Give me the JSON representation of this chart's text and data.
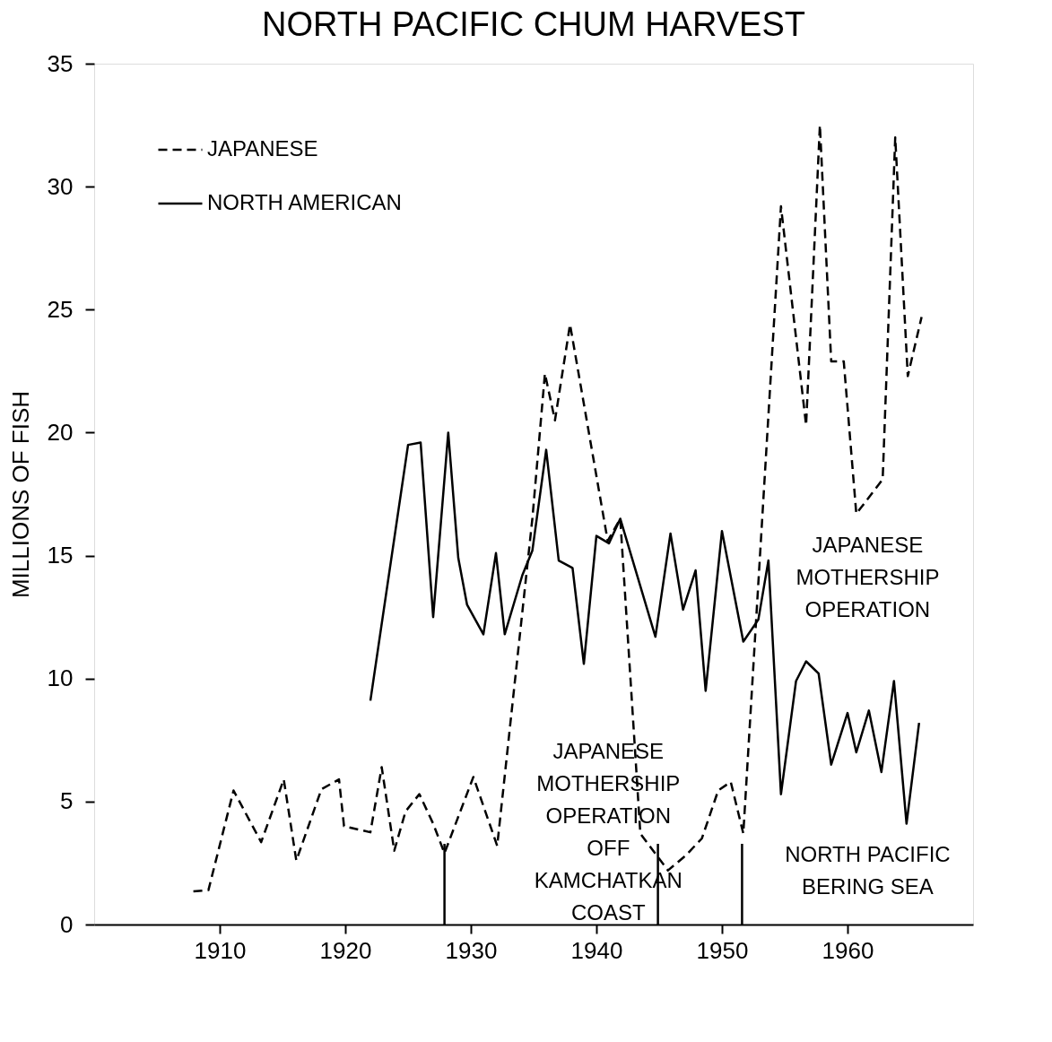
{
  "chart_data": {
    "type": "line",
    "title": "NORTH PACIFIC CHUM HARVEST",
    "ylabel": "MILLIONS OF FISH",
    "xlim": [
      1900,
      1970
    ],
    "xticks": [
      1910,
      1920,
      1930,
      1940,
      1950,
      1960
    ],
    "ylim": [
      0,
      35
    ],
    "yticks": [
      0,
      5,
      10,
      15,
      20,
      25,
      30,
      35
    ],
    "grid": false,
    "legend": "top left",
    "marker": "none",
    "series": [
      {
        "name": "JAPANESE",
        "color": "#000000",
        "line_style": "dashed",
        "x": [
          1907.9,
          1909.1,
          1911.1,
          1913.3,
          1915.1,
          1916.1,
          1918.1,
          1919.5,
          1919.9,
          1922.0,
          1922.9,
          1923.9,
          1924.8,
          1925.9,
          1927.0,
          1927.9,
          1930.2,
          1932.1,
          1934.9,
          1935.9,
          1936.7,
          1937.9,
          1940.9,
          1941.9,
          1943.5,
          1945.7,
          1947.1,
          1948.4,
          1949.7,
          1950.7,
          1951.7,
          1954.7,
          1956.7,
          1957.8,
          1958.7,
          1959.7,
          1960.7,
          1962.8,
          1963.8,
          1964.8,
          1965.9
        ],
        "values": [
          1.35,
          1.4,
          5.45,
          3.35,
          5.9,
          2.6,
          5.5,
          5.9,
          4.0,
          3.75,
          6.4,
          3.0,
          4.6,
          5.3,
          4.1,
          2.9,
          6.0,
          3.2,
          16.5,
          22.4,
          20.5,
          24.4,
          15.6,
          16.5,
          3.7,
          2.2,
          2.8,
          3.5,
          5.45,
          5.8,
          3.7,
          29.2,
          20.3,
          32.5,
          22.9,
          22.9,
          16.7,
          18.1,
          32.0,
          22.3,
          24.7
        ]
      },
      {
        "name": "NORTH AMERICAN",
        "color": "#000000",
        "line_style": "solid",
        "x": [
          1922.0,
          1925.0,
          1926.0,
          1927.0,
          1928.2,
          1929.0,
          1929.7,
          1931.0,
          1932.0,
          1932.7,
          1934.1,
          1934.9,
          1936.0,
          1937.0,
          1938.1,
          1939.0,
          1940.0,
          1941.0,
          1941.9,
          1944.7,
          1945.9,
          1946.9,
          1947.9,
          1948.7,
          1950.0,
          1951.7,
          1952.9,
          1953.7,
          1954.7,
          1955.9,
          1956.7,
          1957.7,
          1958.7,
          1960.0,
          1960.7,
          1961.7,
          1962.7,
          1963.7,
          1964.7,
          1965.7
        ],
        "values": [
          9.1,
          19.5,
          19.6,
          12.5,
          20.0,
          14.9,
          13.0,
          11.8,
          15.1,
          11.8,
          14.2,
          15.2,
          19.3,
          14.8,
          14.5,
          10.6,
          15.8,
          15.5,
          16.5,
          11.7,
          15.9,
          12.8,
          14.4,
          9.5,
          16.0,
          11.5,
          12.4,
          14.8,
          5.3,
          9.9,
          10.7,
          10.2,
          6.5,
          8.6,
          7.0,
          8.7,
          6.2,
          9.9,
          4.1,
          8.2
        ]
      }
    ],
    "ref_lines": [
      {
        "axis": "x",
        "value": 1927.9
      },
      {
        "axis": "x",
        "value": 1944.9
      },
      {
        "axis": "x",
        "value": 1951.6
      }
    ],
    "annotations": [
      "JAPANESE\nMOTHERSHIP\nOPERATION\nOFF\nKAMCHATKAN\nCOAST",
      "JAPANESE\nMOTHERSHIP\nOPERATION",
      "NORTH PACIFIC\nBERING SEA"
    ]
  }
}
